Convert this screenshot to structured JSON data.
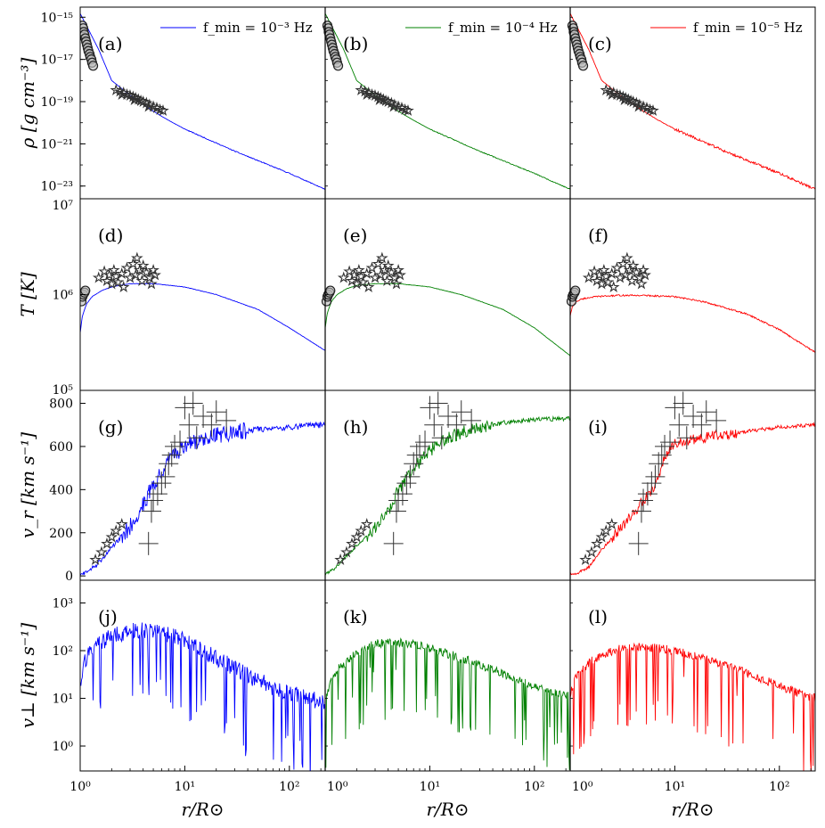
{
  "chart_data": {
    "type": "line",
    "title": "",
    "xlabel": "r/R⊙",
    "xscale": "log",
    "xlim": [
      1,
      220
    ],
    "x_ticks": [
      {
        "value": 1,
        "label": "10⁰"
      },
      {
        "value": 10,
        "label": "10¹"
      },
      {
        "value": 100,
        "label": "10²"
      }
    ],
    "columns": [
      {
        "name": "f_min = 10⁻³ Hz",
        "legend": "f_min = 10⁻³ Hz",
        "color": "#0000ff",
        "seed": 11
      },
      {
        "name": "f_min = 10⁻⁴ Hz",
        "legend": "f_min = 10⁻⁴ Hz",
        "color": "#008000",
        "seed": 23
      },
      {
        "name": "f_min = 10⁻⁵ Hz",
        "legend": "f_min = 10⁻⁵ Hz",
        "color": "#ff0000",
        "seed": 37
      }
    ],
    "rows": [
      {
        "quantity": "rho",
        "ylabel": "ρ [g cm⁻³]",
        "yscale": "log",
        "ylim": [
          2.5e-24,
          3e-15
        ],
        "y_ticks": [
          {
            "value": 1e-15,
            "label": "10⁻¹⁵"
          },
          {
            "value": 1e-17,
            "label": "10⁻¹⁷"
          },
          {
            "value": 1e-19,
            "label": "10⁻¹⁹"
          },
          {
            "value": 1e-21,
            "label": "10⁻²¹"
          },
          {
            "value": 1e-23,
            "label": "10⁻²³"
          }
        ],
        "panel_labels": [
          "(a)",
          "(b)",
          "(c)"
        ],
        "model": {
          "r": [
            1,
            1.5,
            2,
            3,
            5,
            7,
            10,
            30,
            100,
            220
          ],
          "y": [
            1.5e-15,
            3e-17,
            1e-18,
            2e-19,
            3.5e-20,
            1.3e-20,
            5e-21,
            4.5e-22,
            4e-23,
            7e-24
          ]
        },
        "noise_dex": [
          0.02,
          0.02,
          0.06
        ],
        "obs_circles": [
          [
            1.05,
            4e-16
          ],
          [
            1.07,
            3e-16
          ],
          [
            1.08,
            2e-16
          ],
          [
            1.1,
            1.5e-16
          ],
          [
            1.12,
            1e-16
          ],
          [
            1.14,
            7e-17
          ],
          [
            1.16,
            5e-17
          ],
          [
            1.18,
            3.5e-17
          ],
          [
            1.2,
            2.5e-17
          ],
          [
            1.23,
            1.8e-17
          ],
          [
            1.25,
            1.3e-17
          ],
          [
            1.28,
            1e-17
          ],
          [
            1.3,
            7e-18
          ],
          [
            1.33,
            5e-18
          ]
        ],
        "obs_stars": [
          [
            2.2,
            3.5e-19
          ],
          [
            2.4,
            3e-19
          ],
          [
            2.6,
            2.7e-19
          ],
          [
            2.8,
            2.2e-19
          ],
          [
            3.0,
            2e-19
          ],
          [
            3.2,
            1.7e-19
          ],
          [
            3.4,
            1.5e-19
          ],
          [
            3.6,
            1.3e-19
          ],
          [
            3.8,
            1.1e-19
          ],
          [
            4.0,
            1e-19
          ],
          [
            4.3,
            8.5e-20
          ],
          [
            4.6,
            7e-20
          ],
          [
            5.0,
            6e-20
          ],
          [
            5.4,
            5e-20
          ],
          [
            5.8,
            4.2e-20
          ],
          [
            6.2,
            3.7e-20
          ],
          [
            2.5,
            2.2e-19
          ],
          [
            3.3,
            1.2e-19
          ],
          [
            4.5,
            6e-20
          ]
        ],
        "obs_crosses": []
      },
      {
        "quantity": "T",
        "ylabel": "T [K]",
        "yscale": "log",
        "ylim": [
          100000.0,
          10000000.0
        ],
        "y_ticks": [
          {
            "value": 10000000.0,
            "label": "10⁷"
          },
          {
            "value": 1000000.0,
            "label": "10⁶"
          },
          {
            "value": 100000.0,
            "label": "10⁵"
          }
        ],
        "panel_labels": [
          "(d)",
          "(e)",
          "(f)"
        ],
        "models": [
          {
            "r": [
              1,
              1.05,
              1.15,
              1.3,
              1.6,
              2,
              3,
              5,
              10,
              20,
              50,
              100,
              220
            ],
            "y": [
              400000.0,
              600000.0,
              800000.0,
              950000.0,
              1100000.0,
              1200000.0,
              1300000.0,
              1300000.0,
              1200000.0,
              1000000.0,
              700000.0,
              450000.0,
              260000.0
            ]
          },
          {
            "r": [
              1,
              1.05,
              1.15,
              1.3,
              1.6,
              2,
              3,
              5,
              10,
              20,
              50,
              100,
              220
            ],
            "y": [
              450000.0,
              650000.0,
              850000.0,
              1000000.0,
              1150000.0,
              1250000.0,
              1300000.0,
              1300000.0,
              1200000.0,
              1000000.0,
              700000.0,
              450000.0,
              230000.0
            ]
          },
          {
            "r": [
              1,
              1.05,
              1.15,
              1.3,
              1.6,
              2,
              3,
              5,
              10,
              20,
              50,
              100,
              220
            ],
            "y": [
              600000.0,
              750000.0,
              850000.0,
              900000.0,
              940000.0,
              960000.0,
              980000.0,
              980000.0,
              950000.0,
              830000.0,
              620000.0,
              430000.0,
              250000.0
            ]
          }
        ],
        "noise_dex": [
          0.002,
          0.002,
          0.008
        ],
        "obs_circles": [
          [
            1.03,
            850000.0
          ],
          [
            1.05,
            950000.0
          ],
          [
            1.07,
            1000000.0
          ],
          [
            1.1,
            1050000.0
          ],
          [
            1.12,
            1100000.0
          ]
        ],
        "obs_stars": [
          [
            1.5,
            1500000.0
          ],
          [
            1.7,
            1750000.0
          ],
          [
            1.8,
            1400000.0
          ],
          [
            1.9,
            1600000.0
          ],
          [
            2.0,
            1300000.0
          ],
          [
            2.1,
            1800000.0
          ],
          [
            2.2,
            1550000.0
          ],
          [
            2.3,
            1350000.0
          ],
          [
            2.5,
            1650000.0
          ],
          [
            2.6,
            1200000.0
          ],
          [
            2.8,
            1900000.0
          ],
          [
            3.0,
            1500000.0
          ],
          [
            3.2,
            2100000.0
          ],
          [
            3.4,
            1600000.0
          ],
          [
            3.5,
            2400000.0
          ],
          [
            3.7,
            1800000.0
          ],
          [
            3.9,
            1400000.0
          ],
          [
            4.0,
            2000000.0
          ],
          [
            4.3,
            1700000.0
          ],
          [
            4.6,
            1500000.0
          ],
          [
            4.8,
            1300000.0
          ],
          [
            5.0,
            1800000.0
          ],
          [
            5.2,
            1600000.0
          ]
        ],
        "obs_crosses": []
      },
      {
        "quantity": "vr",
        "ylabel": "v_r [km s⁻¹]",
        "yscale": "linear",
        "ylim": [
          -20,
          860
        ],
        "y_ticks": [
          {
            "value": 0,
            "label": "0"
          },
          {
            "value": 200,
            "label": "200"
          },
          {
            "value": 400,
            "label": "400"
          },
          {
            "value": 600,
            "label": "600"
          },
          {
            "value": 800,
            "label": "800"
          }
        ],
        "panel_labels": [
          "(g)",
          "(h)",
          "(i)"
        ],
        "models": [
          {
            "r": [
              1,
              1.2,
              1.5,
              2,
              3,
              4,
              5,
              7,
              10,
              15,
              25,
              50,
              100,
              220
            ],
            "y": [
              5,
              20,
              60,
              130,
              230,
              330,
              430,
              530,
              600,
              640,
              660,
              680,
              690,
              700
            ]
          },
          {
            "r": [
              1,
              1.2,
              1.5,
              2,
              3,
              4,
              5,
              7,
              10,
              15,
              25,
              50,
              100,
              220
            ],
            "y": [
              5,
              30,
              80,
              140,
              220,
              300,
              400,
              500,
              580,
              640,
              680,
              710,
              725,
              730
            ]
          },
          {
            "r": [
              1,
              1.2,
              1.5,
              2,
              3,
              4,
              5,
              6,
              7,
              8,
              10,
              15,
              25,
              50,
              100,
              220
            ],
            "y": [
              5,
              15,
              40,
              120,
              220,
              290,
              350,
              390,
              450,
              560,
              610,
              630,
              650,
              670,
              690,
              700
            ]
          }
        ],
        "noise_abs": [
          40,
          30,
          25
        ],
        "obs_circles": [],
        "obs_stars": [
          [
            1.4,
            75
          ],
          [
            1.6,
            110
          ],
          [
            1.8,
            150
          ],
          [
            2.0,
            180
          ],
          [
            2.2,
            210
          ],
          [
            2.5,
            240
          ]
        ],
        "obs_crosses": [
          [
            4.5,
            150
          ],
          [
            4.8,
            300
          ],
          [
            5.0,
            350
          ],
          [
            5.5,
            380
          ],
          [
            6.0,
            430
          ],
          [
            6.5,
            460
          ],
          [
            7.0,
            520
          ],
          [
            7.5,
            560
          ],
          [
            8.0,
            600
          ],
          [
            9.0,
            620
          ],
          [
            10.0,
            780
          ],
          [
            12.0,
            800
          ],
          [
            15.0,
            740
          ],
          [
            18.0,
            700
          ],
          [
            20.0,
            760
          ],
          [
            25.0,
            720
          ],
          [
            13.0,
            640
          ],
          [
            11.0,
            700
          ]
        ]
      },
      {
        "quantity": "vperp",
        "ylabel": "v⊥ [km s⁻¹]",
        "yscale": "log",
        "ylim": [
          0.3,
          3000
        ],
        "y_ticks": [
          {
            "value": 1000,
            "label": "10³"
          },
          {
            "value": 100,
            "label": "10²"
          },
          {
            "value": 10,
            "label": "10¹"
          },
          {
            "value": 1,
            "label": "10⁰"
          }
        ],
        "panel_labels": [
          "(j)",
          "(k)",
          "(l)"
        ],
        "models": [
          {
            "r": [
              1,
              1.1,
              1.3,
              1.6,
              2,
              3,
              5,
              8,
              12,
              20,
              40,
              80,
              150,
              220
            ],
            "y": [
              18,
              60,
              100,
              150,
              200,
              260,
              260,
              200,
              130,
              70,
              30,
              15,
              10,
              8
            ]
          },
          {
            "r": [
              1,
              1.1,
              1.3,
              1.6,
              2,
              3,
              5,
              8,
              12,
              20,
              40,
              80,
              150,
              220
            ],
            "y": [
              8,
              20,
              40,
              60,
              90,
              140,
              150,
              130,
              100,
              70,
              40,
              22,
              14,
              11
            ]
          },
          {
            "r": [
              1,
              1.1,
              1.3,
              1.6,
              2,
              3,
              5,
              8,
              12,
              20,
              40,
              80,
              150,
              220
            ],
            "y": [
              12,
              25,
              40,
              60,
              80,
              110,
              120,
              110,
              90,
              65,
              40,
              22,
              13,
              10
            ]
          }
        ],
        "noise_dex": [
          0.35,
          0.18,
          0.18
        ],
        "obs_circles": [],
        "obs_stars": [],
        "obs_crosses": []
      }
    ]
  }
}
